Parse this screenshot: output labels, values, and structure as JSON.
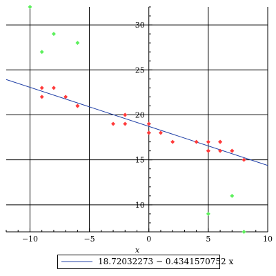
{
  "chart_data": {
    "type": "scatter",
    "xlabel": "x",
    "ylabel": "",
    "xlim": [
      -12,
      10
    ],
    "ylim": [
      7,
      32
    ],
    "xticks": [
      -10,
      -5,
      0,
      5,
      10
    ],
    "yticks": [
      10,
      15,
      20,
      25,
      30
    ],
    "grid": true,
    "colors": {
      "red_points": "#ff3b3b",
      "green_points": "#5cf05c",
      "fit_line": "#1f3fa6",
      "grid": "#000000"
    },
    "series": [
      {
        "marker": "diamond",
        "color": "#ff3b3b",
        "points": [
          [
            -9,
            23
          ],
          [
            -9,
            22
          ],
          [
            -8,
            23
          ],
          [
            -7,
            22
          ],
          [
            -6,
            21
          ],
          [
            -6,
            21
          ],
          [
            -3,
            19
          ],
          [
            -2,
            20
          ],
          [
            -2,
            20
          ],
          [
            -2,
            19
          ],
          [
            0,
            19
          ],
          [
            0,
            18
          ],
          [
            0,
            18
          ],
          [
            1,
            18
          ],
          [
            2,
            17
          ],
          [
            4,
            17
          ],
          [
            5,
            17
          ],
          [
            5,
            16
          ],
          [
            5,
            16
          ],
          [
            6,
            17
          ],
          [
            6,
            17
          ],
          [
            6,
            16
          ],
          [
            7,
            16
          ],
          [
            7,
            16
          ],
          [
            8,
            15
          ]
        ]
      },
      {
        "marker": "diamond",
        "color": "#5cf05c",
        "points": [
          [
            -10,
            32
          ],
          [
            -9,
            27
          ],
          [
            -8,
            29
          ],
          [
            -6,
            28
          ],
          [
            5,
            9
          ],
          [
            7,
            11
          ],
          [
            8,
            7
          ]
        ]
      },
      {
        "name": "18.72032273 − 0.4341570752 x",
        "type": "line",
        "color": "#1f3fa6",
        "intercept": 18.72032273,
        "slope": -0.4341570752
      }
    ],
    "legend": {
      "position": "bottom",
      "label": "18.72032273 − 0.4341570752 x"
    }
  }
}
